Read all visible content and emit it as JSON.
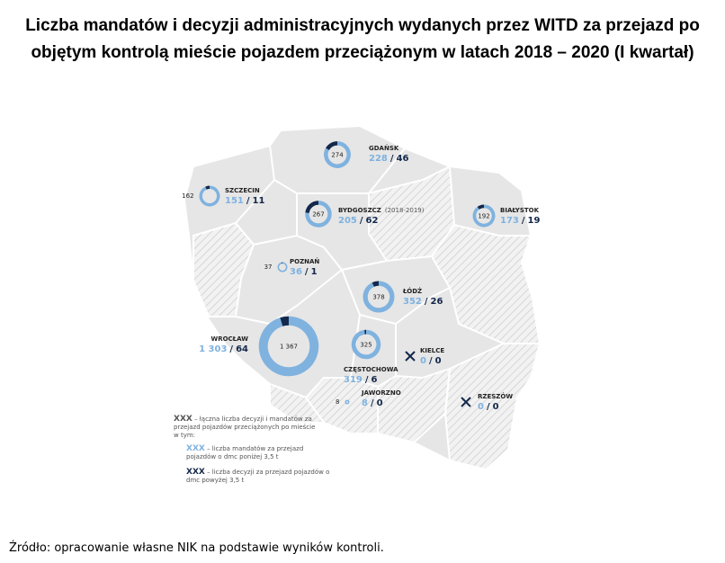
{
  "title": "Liczba mandatów i decyzji administracyjnych wydanych przez WITD za przejazd po objętym kontrolą mieście pojazdem przeciążonym w latach 2018 – 2020 (I kwartał)",
  "separator": "/",
  "cities": [
    {
      "name": "GDAŃSK",
      "total": 274,
      "light": 228,
      "dark": 46
    },
    {
      "name": "SZCZECIN",
      "total": 162,
      "light": 151,
      "dark": 11
    },
    {
      "name": "BYDGOSZCZ",
      "note": "(2018-2019)",
      "total": 267,
      "light": 205,
      "dark": 62
    },
    {
      "name": "BIAŁYSTOK",
      "total": 192,
      "light": 173,
      "dark": 19
    },
    {
      "name": "POZNAŃ",
      "total": 37,
      "light": 36,
      "dark": 1
    },
    {
      "name": "ŁÓDŹ",
      "total": 378,
      "light": 352,
      "dark": 26
    },
    {
      "name": "WROCŁAW",
      "total": {
        "value": 1367,
        "label": "1 367"
      },
      "light": {
        "value": 1303,
        "label": "1 303"
      },
      "dark": 64
    },
    {
      "name": "CZĘSTOCHOWA",
      "total": 325,
      "light": 319,
      "dark": 6
    },
    {
      "name": "KIELCE",
      "light": 0,
      "dark": 0
    },
    {
      "name": "JAWORZNO",
      "total": 8,
      "light": 8,
      "dark": 0
    },
    {
      "name": "RZESZÓW",
      "light": 0,
      "dark": 0
    }
  ],
  "legend": {
    "marker": "XXX",
    "total_text": "– łączna liczba decyzji i mandatów za przejazd pojazdów przeciążonych po mieście w tym:",
    "light_text": "– liczba mandatów za przejazd pojazdów o dmc poniżej 3,5 t",
    "dark_text": "– liczba decyzji za przejazd pojazdów o dmc powyżej 3,5 t"
  },
  "source": "Źródło: opracowanie własne NIK na podstawie wyników kontroli."
}
